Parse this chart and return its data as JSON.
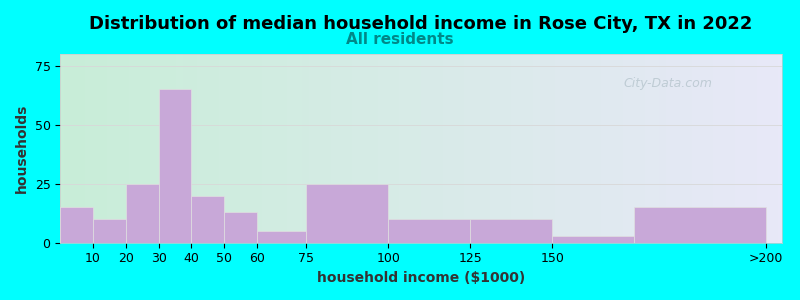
{
  "title": "Distribution of median household income in Rose City, TX in 2022",
  "subtitle": "All residents",
  "xlabel": "household income ($1000)",
  "ylabel": "households",
  "background_color": "#00FFFF",
  "plot_bg_left": "#c8eed8",
  "plot_bg_right": "#e8e8f8",
  "bar_color": "#c8a8d8",
  "bar_edge_color": "#e0e0e0",
  "watermark": "City-Data.com",
  "bar_lefts": [
    0,
    10,
    20,
    30,
    40,
    50,
    60,
    75,
    100,
    125,
    150,
    175
  ],
  "bar_widths": [
    10,
    10,
    10,
    10,
    10,
    10,
    15,
    25,
    25,
    25,
    25,
    40
  ],
  "values": [
    15,
    10,
    25,
    65,
    20,
    13,
    5,
    25,
    10,
    10,
    3,
    15
  ],
  "xtick_positions": [
    10,
    20,
    30,
    40,
    50,
    60,
    75,
    100,
    125,
    150,
    215
  ],
  "xtick_labels": [
    "10",
    "20",
    "30",
    "40",
    "50",
    "60",
    "75",
    "100",
    "125",
    "150",
    ">200"
  ],
  "xlim": [
    0,
    220
  ],
  "ylim": [
    0,
    80
  ],
  "yticks": [
    0,
    25,
    50,
    75
  ],
  "title_fontsize": 13,
  "subtitle_fontsize": 11,
  "subtitle_color": "#008888",
  "axis_label_fontsize": 10,
  "tick_label_fontsize": 9,
  "grid_color": "#d8d8d8",
  "watermark_color": "#b0c0c8",
  "watermark_alpha": 0.7
}
